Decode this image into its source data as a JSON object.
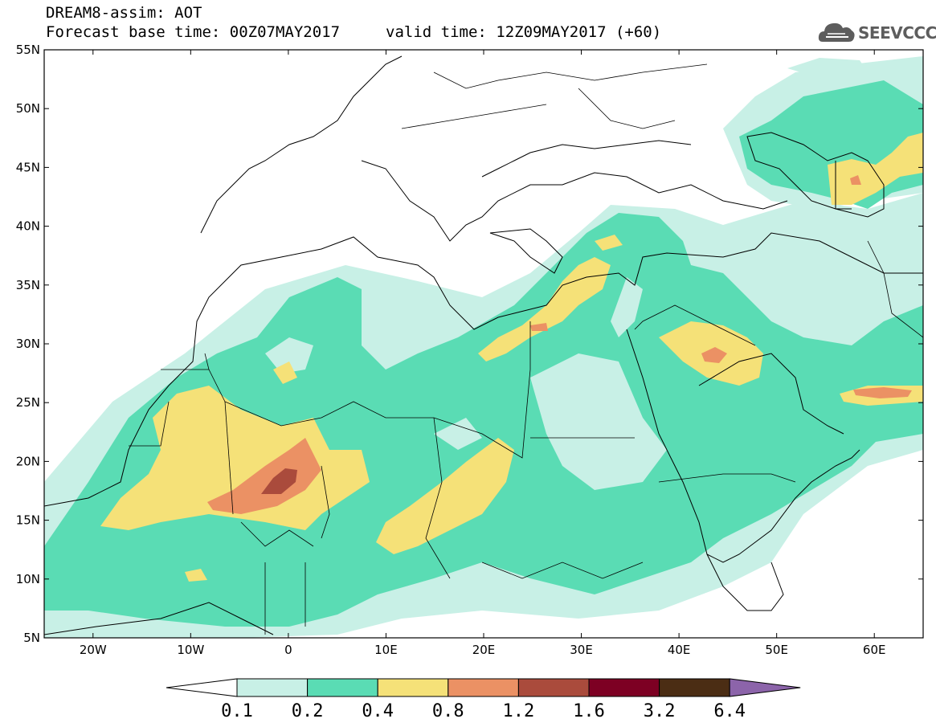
{
  "header": {
    "line1": "DREAM8-assim: AOT",
    "line2": "Forecast base time: 00Z07MAY2017",
    "valid": "valid time: 12Z09MAY2017 (+60)"
  },
  "logo": {
    "text": "SEEVCCC",
    "icon": "cloud-icon",
    "color": "#5d5d5d"
  },
  "map": {
    "lon_range": [
      -25,
      65
    ],
    "lat_range": [
      5,
      55
    ],
    "lat_labels": [
      "55N",
      "50N",
      "45N",
      "40N",
      "35N",
      "30N",
      "25N",
      "20N",
      "15N",
      "10N",
      "5N"
    ],
    "lon_labels": [
      "20W",
      "10W",
      "0",
      "10E",
      "20E",
      "30E",
      "40E",
      "50E",
      "60E"
    ]
  },
  "colorbar": {
    "labels": [
      "0.1",
      "0.2",
      "0.4",
      "0.8",
      "1.2",
      "1.6",
      "3.2",
      "6.4"
    ],
    "colors": [
      "#c8f0e6",
      "#5adcb4",
      "#f5e178",
      "#eb9164",
      "#aa4b3c",
      "#7d0023",
      "#4b2d14",
      "#8c64aa"
    ]
  }
}
